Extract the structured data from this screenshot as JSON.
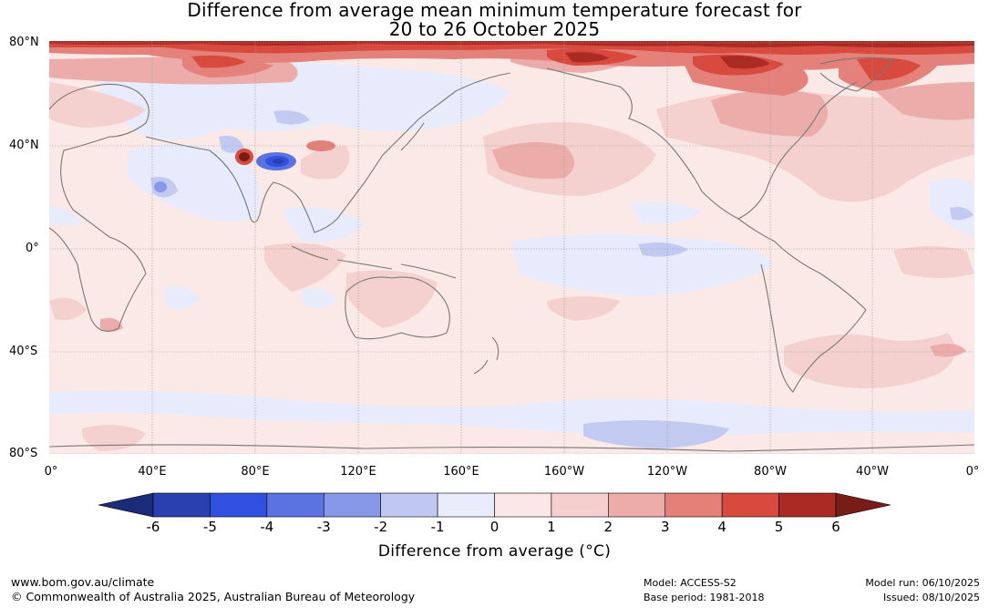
{
  "title_line1": "Difference from average mean minimum temperature forecast for",
  "title_line2": "20 to 26 October 2025",
  "map": {
    "lat_labels": [
      "80°N",
      "40°N",
      "0°",
      "40°S",
      "80°S"
    ],
    "lon_labels": [
      "0°",
      "40°E",
      "80°E",
      "120°E",
      "160°E",
      "160°W",
      "120°W",
      "80°W",
      "40°W",
      "0°"
    ],
    "region": "Global",
    "lat_range": [
      -80,
      80
    ],
    "lon_range": [
      0,
      360
    ]
  },
  "colorbar": {
    "ticks": [
      "-6",
      "-5",
      "-4",
      "-3",
      "-2",
      "-1",
      "0",
      "1",
      "2",
      "3",
      "4",
      "5",
      "6"
    ],
    "label": "Difference from average (°C)",
    "colors": [
      "#1c2a7a",
      "#2a40b0",
      "#3050e0",
      "#5a73e0",
      "#8898e8",
      "#c0c8f2",
      "#e8ecfb",
      "#fbe8e6",
      "#f4cfcd",
      "#ecaca8",
      "#e58078",
      "#d94a3e",
      "#aa2a24",
      "#781c18"
    ]
  },
  "footer": {
    "url": "www.bom.gov.au/climate",
    "copyright": "© Commonwealth of Australia 2025, Australian Bureau of Meteorology",
    "model": "Model: ACCESS-S2",
    "base_period": "Base period: 1981-2018",
    "model_run": "Model run: 06/10/2025",
    "issued": "Issued: 08/10/2025"
  }
}
